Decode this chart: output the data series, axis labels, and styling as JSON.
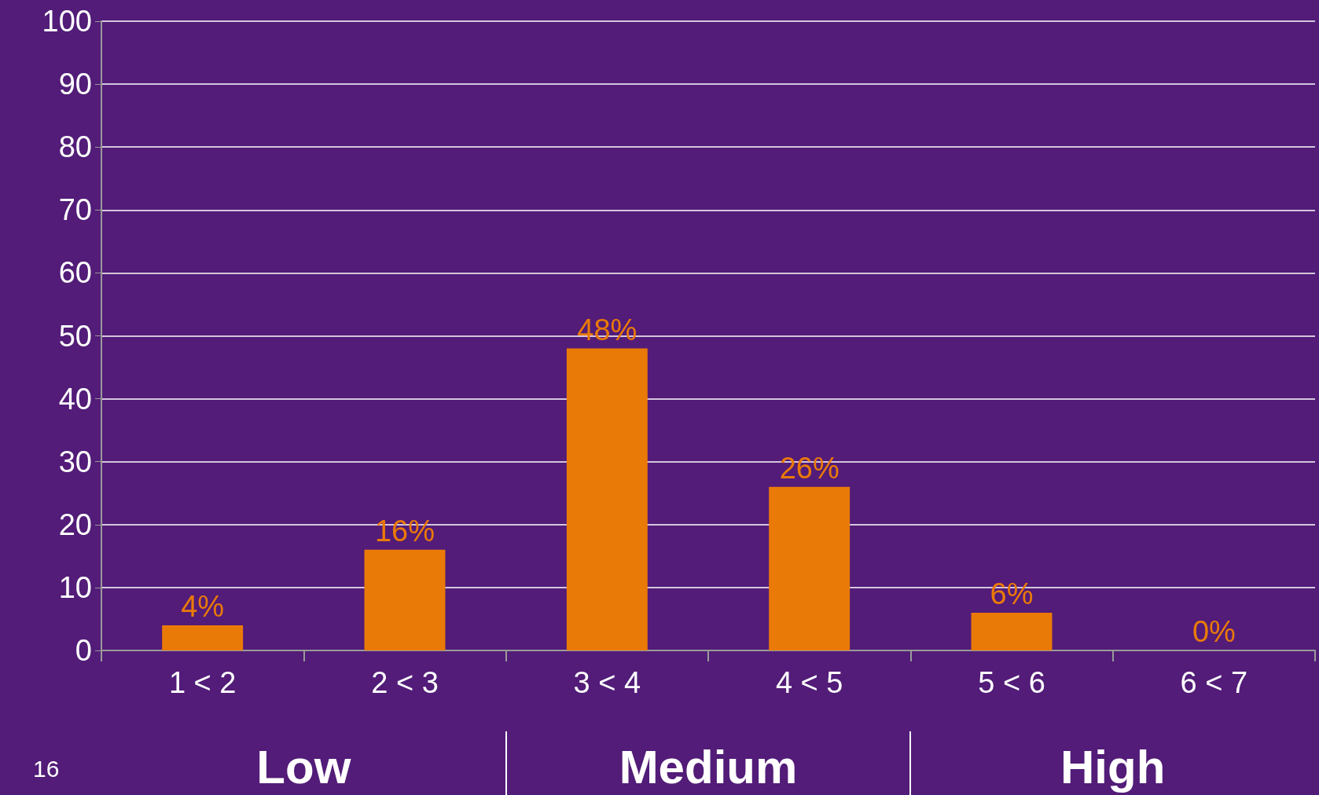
{
  "chart_data": {
    "type": "bar",
    "categories": [
      "1 < 2",
      "2 < 3",
      "3 < 4",
      "4 < 5",
      "5 < 6",
      "6 < 7"
    ],
    "values": [
      4,
      16,
      48,
      26,
      6,
      0
    ],
    "value_labels": [
      "4%",
      "16%",
      "48%",
      "26%",
      "6%",
      "0%"
    ],
    "color": "#ea7a08",
    "ylim": [
      0,
      100
    ],
    "yticks": [
      0,
      10,
      20,
      30,
      40,
      50,
      60,
      70,
      80,
      90,
      100
    ],
    "grid": "y",
    "annotations": [
      "16",
      "Low",
      "Medium",
      "High"
    ]
  }
}
